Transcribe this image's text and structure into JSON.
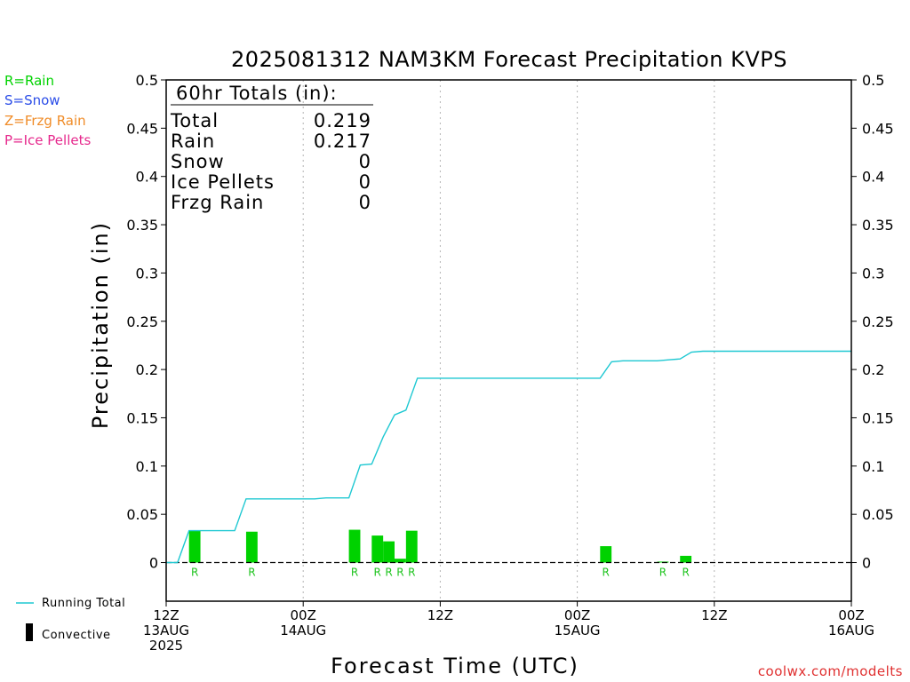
{
  "chart_data": {
    "type": "bar",
    "title": "2025081312 NAM3KM Forecast Precipitation KVPS",
    "xlabel": "Forecast Time (UTC)",
    "ylabel": "Precipitation (in)",
    "ylim": [
      -0.04,
      0.5
    ],
    "xlim_hours": [
      0,
      60
    ],
    "y_ticks": [
      "0.5",
      "0.45",
      "0.4",
      "0.35",
      "0.3",
      "0.25",
      "0.2",
      "0.15",
      "0.1",
      "0.05",
      "0"
    ],
    "x_ticks": [
      {
        "hour": 0,
        "line1": "12Z",
        "line2": "13AUG",
        "line3": "2025"
      },
      {
        "hour": 12,
        "line1": "00Z",
        "line2": "14AUG",
        "line3": ""
      },
      {
        "hour": 24,
        "line1": "12Z",
        "line2": "",
        "line3": ""
      },
      {
        "hour": 36,
        "line1": "00Z",
        "line2": "15AUG",
        "line3": ""
      },
      {
        "hour": 48,
        "line1": "12Z",
        "line2": "",
        "line3": ""
      },
      {
        "hour": 60,
        "line1": "00Z",
        "line2": "16AUG",
        "line3": ""
      }
    ],
    "grid": "vertical dotted at 12-hour intervals",
    "bars": [
      {
        "hour": 2.5,
        "value": 0.033,
        "ptype": "R"
      },
      {
        "hour": 7.5,
        "value": 0.032,
        "ptype": "R"
      },
      {
        "hour": 16.5,
        "value": 0.034,
        "ptype": "R"
      },
      {
        "hour": 18.5,
        "value": 0.028,
        "ptype": "R"
      },
      {
        "hour": 19.5,
        "value": 0.022,
        "ptype": "R"
      },
      {
        "hour": 20.5,
        "value": 0.004,
        "ptype": "R"
      },
      {
        "hour": 21.5,
        "value": 0.033,
        "ptype": "R"
      },
      {
        "hour": 38.5,
        "value": 0.017,
        "ptype": "R"
      },
      {
        "hour": 43.5,
        "value": 0.001,
        "ptype": "R"
      },
      {
        "hour": 45.5,
        "value": 0.007,
        "ptype": "R"
      }
    ],
    "running_total": {
      "name": "Running Total",
      "x": [
        0,
        1,
        2,
        3,
        4,
        5,
        6,
        7,
        8,
        9,
        10,
        11,
        12,
        13,
        14,
        15,
        16,
        17,
        18,
        19,
        20,
        21,
        22,
        23,
        24,
        25,
        30,
        35,
        36,
        37,
        38,
        39,
        40,
        41,
        42,
        43,
        44,
        45,
        46,
        47,
        48,
        50,
        55,
        60
      ],
      "y": [
        0,
        0,
        0.033,
        0.033,
        0.033,
        0.033,
        0.033,
        0.066,
        0.066,
        0.066,
        0.066,
        0.066,
        0.066,
        0.066,
        0.067,
        0.067,
        0.067,
        0.101,
        0.102,
        0.13,
        0.153,
        0.158,
        0.191,
        0.191,
        0.191,
        0.191,
        0.191,
        0.191,
        0.191,
        0.191,
        0.191,
        0.208,
        0.209,
        0.209,
        0.209,
        0.209,
        0.21,
        0.211,
        0.218,
        0.219,
        0.219,
        0.219,
        0.219,
        0.219
      ]
    },
    "colors": {
      "rain": "#00d200",
      "line": "#1ec8d2",
      "snow": "#2c4ee8",
      "frzg": "#f08c28",
      "ice": "#e6288c",
      "footer": "#e03030"
    }
  },
  "legend": {
    "rain": "R=Rain",
    "snow": "S=Snow",
    "frzg": "Z=Frzg Rain",
    "ice": "P=Ice Pellets"
  },
  "totals": {
    "header": "60hr Totals (in):",
    "rows": [
      {
        "label": "Total",
        "value": "0.219"
      },
      {
        "label": "Rain",
        "value": "0.217"
      },
      {
        "label": "Snow",
        "value": "0"
      },
      {
        "label": "Ice Pellets",
        "value": "0"
      },
      {
        "label": "Frzg Rain",
        "value": "0"
      }
    ]
  },
  "bottom_legend": {
    "running_total": "Running Total",
    "convective": "Convective"
  },
  "footer": "coolwx.com/modelts"
}
